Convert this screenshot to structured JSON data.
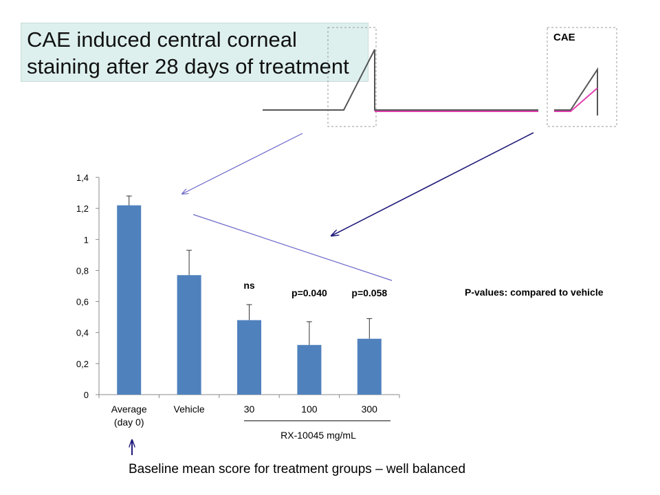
{
  "slide": {
    "title_line1": "CAE induced central corneal",
    "title_line2": "staining after 28 days of treatment",
    "cae_label": "CAE",
    "pvalue_note": "P-values: compared to vehicle",
    "baseline_note": "Baseline mean score for treatment groups – well balanced",
    "colors": {
      "bar": "#4f81bd",
      "title_bg": "#ddf0ee",
      "gray_trace": "#555555",
      "pink_trace": "#e040b0",
      "arrow": "#1f1a7a"
    },
    "icons": [
      "arrow-up-icon"
    ]
  },
  "chart_data": {
    "type": "bar",
    "categories": [
      "Average\n(day 0)",
      "Vehicle",
      "30",
      "100",
      "300"
    ],
    "values": [
      1.22,
      0.77,
      0.48,
      0.32,
      0.36
    ],
    "error_upper": [
      0.06,
      0.16,
      0.1,
      0.15,
      0.13
    ],
    "annotations": [
      "",
      "",
      "ns",
      "p=0.040",
      "p=0.058"
    ],
    "group_label": "RX-10045 mg/mL",
    "ylim": [
      0,
      1.4
    ],
    "yticks": [
      0,
      0.2,
      0.4,
      0.6,
      0.8,
      1,
      1.2,
      1.4
    ],
    "ytick_labels": [
      "0",
      "0,2",
      "0,4",
      "0,6",
      "0,8",
      "1",
      "1,2",
      "1,4"
    ],
    "grid": false
  }
}
